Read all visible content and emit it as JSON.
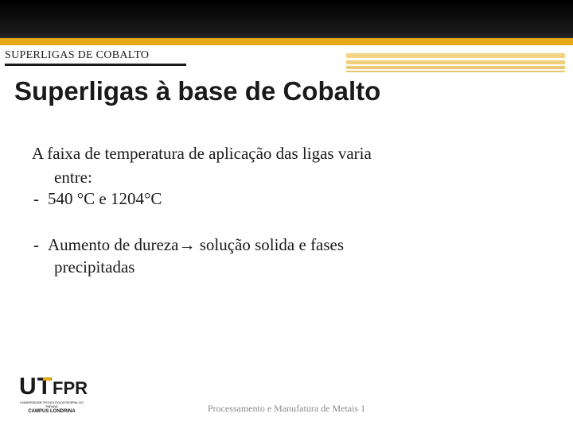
{
  "header": {
    "section_label": "SUPERLIGAS DE COBALTO",
    "colors": {
      "dark_bar": "#000000",
      "yellow_band": "#e6a817"
    }
  },
  "title": "Superligas à base de Cobalto",
  "body": {
    "para1_line1": "A faixa de temperatura de aplicação das ligas varia",
    "para1_line2": "entre:",
    "bullet1": "540 °C  e 1204°C",
    "bullet2_pre": "Aumento de dureza",
    "bullet2_arrow": "→",
    "bullet2_post": " solução solida e fases",
    "bullet2_line2": "precipitadas"
  },
  "logo": {
    "letters_u": "U",
    "letters_t": "T",
    "letters_fpr": "FPR",
    "subtitle": "UNIVERSIDADE TECNOLÓGICA FEDERAL DO PARANÁ",
    "campus": "CAMPUS LONDRINA"
  },
  "footer": "Processamento e Manufatura de Metais 1"
}
